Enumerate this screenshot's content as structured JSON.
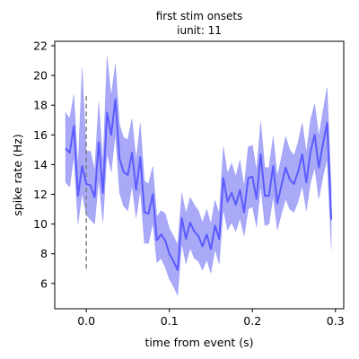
{
  "chart_data": {
    "type": "line",
    "title": "first stim onsets",
    "subtitle": "iunit: 11",
    "xlabel": "time from event (s)",
    "ylabel": "spike rate (Hz)",
    "xlim": [
      -0.038,
      0.31
    ],
    "ylim": [
      4.3,
      22.3
    ],
    "x_ticks": [
      0.0,
      0.1,
      0.2,
      0.3
    ],
    "x_tick_labels": [
      "0.0",
      "0.1",
      "0.2",
      "0.3"
    ],
    "y_ticks": [
      6,
      8,
      10,
      12,
      14,
      16,
      18,
      20,
      22
    ],
    "y_tick_labels": [
      "6",
      "8",
      "10",
      "12",
      "14",
      "16",
      "18",
      "20",
      "22"
    ],
    "grid": false,
    "colors": {
      "line": "#5b5bff",
      "band": "#8c8cf5",
      "event_marker": "#808080"
    },
    "event_marker": {
      "x": 0.0,
      "y_range": [
        6.8,
        18.6
      ]
    },
    "series": [
      {
        "x": [
          -0.025,
          -0.02,
          -0.015,
          -0.01,
          -0.005,
          0.0,
          0.005,
          0.01,
          0.015,
          0.02,
          0.025,
          0.03,
          0.035,
          0.04,
          0.045,
          0.05,
          0.055,
          0.06,
          0.065,
          0.07,
          0.075,
          0.08,
          0.085,
          0.09,
          0.095,
          0.1,
          0.105,
          0.11,
          0.115,
          0.12,
          0.125,
          0.13,
          0.135,
          0.14,
          0.145,
          0.15,
          0.155,
          0.16,
          0.165,
          0.17,
          0.175,
          0.18,
          0.185,
          0.19,
          0.195,
          0.2,
          0.205,
          0.21,
          0.215,
          0.22,
          0.225,
          0.23,
          0.235,
          0.24,
          0.245,
          0.25,
          0.255,
          0.26,
          0.265,
          0.27,
          0.275,
          0.28,
          0.285,
          0.29,
          0.295
        ],
        "values": [
          15.1,
          14.8,
          16.6,
          11.9,
          13.9,
          12.7,
          12.6,
          11.8,
          15.5,
          12.1,
          17.5,
          16.0,
          18.4,
          14.4,
          13.5,
          13.3,
          14.8,
          12.3,
          14.5,
          10.8,
          10.7,
          12.0,
          8.9,
          9.3,
          8.9,
          8.0,
          7.5,
          6.9,
          10.4,
          9.0,
          10.1,
          9.5,
          9.2,
          8.5,
          9.3,
          8.3,
          9.9,
          9.0,
          13.1,
          11.5,
          12.1,
          11.3,
          12.3,
          10.8,
          13.1,
          13.2,
          11.7,
          14.7,
          11.9,
          11.9,
          13.9,
          11.4,
          12.6,
          13.8,
          13.0,
          12.7,
          13.5,
          14.7,
          12.8,
          14.9,
          16.0,
          13.8,
          15.4,
          16.8,
          10.3
        ],
        "lower": [
          12.8,
          12.5,
          14.6,
          10.0,
          12.1,
          10.6,
          10.3,
          10.0,
          13.0,
          10.1,
          14.8,
          13.5,
          16.1,
          12.1,
          11.2,
          10.9,
          12.6,
          10.4,
          12.3,
          8.7,
          8.7,
          10.1,
          7.4,
          7.7,
          7.1,
          6.3,
          5.8,
          5.2,
          8.7,
          7.3,
          8.4,
          7.7,
          7.5,
          6.9,
          7.6,
          6.7,
          8.3,
          7.3,
          11.0,
          9.6,
          10.1,
          9.5,
          10.4,
          9.2,
          11.0,
          11.2,
          9.8,
          12.6,
          9.9,
          10.0,
          11.9,
          9.6,
          10.7,
          11.7,
          11.0,
          10.8,
          11.5,
          12.6,
          10.9,
          12.8,
          13.8,
          11.7,
          13.2,
          14.4,
          8.3
        ],
        "upper": [
          17.5,
          17.1,
          18.7,
          13.8,
          20.5,
          14.9,
          14.9,
          13.6,
          18.2,
          14.1,
          21.3,
          18.6,
          20.8,
          16.7,
          15.8,
          15.7,
          17.1,
          14.3,
          16.8,
          12.9,
          12.7,
          13.9,
          10.5,
          10.9,
          10.7,
          9.7,
          9.2,
          8.6,
          12.1,
          10.7,
          11.8,
          11.3,
          10.9,
          10.1,
          11.0,
          10.0,
          11.6,
          10.7,
          15.2,
          13.4,
          14.1,
          13.2,
          14.3,
          12.5,
          15.2,
          15.3,
          13.6,
          16.9,
          13.8,
          13.8,
          15.9,
          13.2,
          14.5,
          15.9,
          15.0,
          14.6,
          15.5,
          16.8,
          14.8,
          17.0,
          18.1,
          15.9,
          17.6,
          19.2,
          12.3
        ]
      }
    ]
  }
}
